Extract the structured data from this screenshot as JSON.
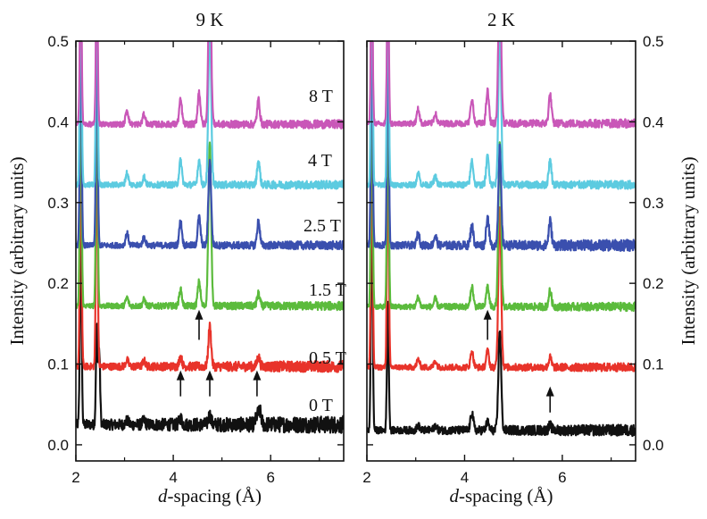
{
  "chart_data": {
    "type": "line",
    "ylabel": "Intensity (arbitrary units)",
    "xlabel_italic": "d",
    "xlabel_rest": "-spacing (Å)",
    "xlim": [
      2,
      7.5
    ],
    "ylim": [
      -0.02,
      0.5
    ],
    "xticks": [
      2,
      4,
      6
    ],
    "yticks": [
      0.0,
      0.1,
      0.2,
      0.3,
      0.4,
      0.5
    ],
    "grid": false,
    "panels": [
      {
        "title": "9 K",
        "y_axis_side": "left",
        "series": [
          {
            "name": "0 T",
            "color": "#111111",
            "baseline": 0.025,
            "peaks": [
              [
                2.1,
                0.24
              ],
              [
                2.43,
                0.12
              ],
              [
                2.48,
                0.09
              ],
              [
                3.05,
                0.005
              ],
              [
                3.4,
                0.005
              ],
              [
                4.15,
                0.008
              ],
              [
                4.75,
                0.012
              ],
              [
                5.72,
                0.01
              ],
              [
                5.78,
                0.015
              ]
            ],
            "noise": 0.006
          },
          {
            "name": "0.5 T",
            "color": "#e8332a",
            "baseline": 0.097,
            "peaks": [
              [
                2.1,
                0.3
              ],
              [
                2.43,
                0.3
              ],
              [
                3.05,
                0.008
              ],
              [
                3.4,
                0.007
              ],
              [
                4.15,
                0.012
              ],
              [
                4.75,
                0.05
              ],
              [
                5.75,
                0.012
              ]
            ],
            "noise": 0.004
          },
          {
            "name": "1.5 T",
            "color": "#5bbb3c",
            "baseline": 0.172,
            "peaks": [
              [
                2.1,
                0.3
              ],
              [
                2.43,
                0.3
              ],
              [
                3.05,
                0.01
              ],
              [
                3.4,
                0.008
              ],
              [
                4.15,
                0.02
              ],
              [
                4.53,
                0.03
              ],
              [
                4.75,
                0.2
              ],
              [
                5.75,
                0.015
              ]
            ],
            "noise": 0.003
          },
          {
            "name": "2.5 T",
            "color": "#3a4fae",
            "baseline": 0.247,
            "peaks": [
              [
                2.1,
                0.3
              ],
              [
                2.43,
                0.3
              ],
              [
                3.05,
                0.015
              ],
              [
                3.4,
                0.01
              ],
              [
                4.15,
                0.03
              ],
              [
                4.53,
                0.035
              ],
              [
                4.75,
                0.105
              ],
              [
                5.75,
                0.03
              ]
            ],
            "noise": 0.003
          },
          {
            "name": "4 T",
            "color": "#5ccbe0",
            "baseline": 0.322,
            "peaks": [
              [
                2.1,
                0.3
              ],
              [
                2.43,
                0.3
              ],
              [
                3.05,
                0.015
              ],
              [
                3.4,
                0.01
              ],
              [
                4.15,
                0.03
              ],
              [
                4.53,
                0.03
              ],
              [
                4.75,
                0.2
              ],
              [
                5.75,
                0.03
              ]
            ],
            "noise": 0.003
          },
          {
            "name": "8 T",
            "color": "#c957b8",
            "baseline": 0.397,
            "peaks": [
              [
                2.1,
                0.2
              ],
              [
                2.43,
                0.2
              ],
              [
                3.05,
                0.018
              ],
              [
                3.4,
                0.012
              ],
              [
                4.15,
                0.03
              ],
              [
                4.53,
                0.04
              ],
              [
                4.75,
                0.2
              ],
              [
                5.75,
                0.03
              ]
            ],
            "noise": 0.003
          }
        ],
        "arrows": [
          [
            4.15,
            0.06,
            0.09
          ],
          [
            4.75,
            0.06,
            0.09
          ],
          [
            5.72,
            0.06,
            0.09
          ],
          [
            4.53,
            0.13,
            0.165
          ]
        ]
      },
      {
        "title": "2 K",
        "y_axis_side": "right",
        "series": [
          {
            "name": "0 T",
            "color": "#111111",
            "baseline": 0.018,
            "peaks": [
              [
                2.1,
                0.3
              ],
              [
                2.43,
                0.16
              ],
              [
                3.05,
                0.006
              ],
              [
                3.4,
                0.006
              ],
              [
                4.15,
                0.022
              ],
              [
                4.47,
                0.01
              ],
              [
                4.72,
                0.125
              ],
              [
                5.75,
                0.006
              ]
            ],
            "noise": 0.004
          },
          {
            "name": "0.5 T",
            "color": "#e8332a",
            "baseline": 0.096,
            "peaks": [
              [
                2.1,
                0.3
              ],
              [
                2.43,
                0.3
              ],
              [
                3.05,
                0.01
              ],
              [
                3.4,
                0.008
              ],
              [
                4.15,
                0.02
              ],
              [
                4.47,
                0.02
              ],
              [
                4.72,
                0.2
              ],
              [
                5.75,
                0.012
              ]
            ],
            "noise": 0.003
          },
          {
            "name": "1.5 T",
            "color": "#5bbb3c",
            "baseline": 0.171,
            "peaks": [
              [
                2.1,
                0.3
              ],
              [
                2.43,
                0.3
              ],
              [
                3.05,
                0.012
              ],
              [
                3.4,
                0.01
              ],
              [
                4.15,
                0.025
              ],
              [
                4.47,
                0.025
              ],
              [
                4.72,
                0.2
              ],
              [
                5.75,
                0.02
              ]
            ],
            "noise": 0.003
          },
          {
            "name": "2.5 T",
            "color": "#3a4fae",
            "baseline": 0.247,
            "peaks": [
              [
                2.1,
                0.3
              ],
              [
                2.43,
                0.3
              ],
              [
                3.05,
                0.015
              ],
              [
                3.4,
                0.012
              ],
              [
                4.15,
                0.025
              ],
              [
                4.47,
                0.035
              ],
              [
                4.72,
                0.12
              ],
              [
                5.75,
                0.03
              ]
            ],
            "noise": 0.004
          },
          {
            "name": "4 T",
            "color": "#5ccbe0",
            "baseline": 0.322,
            "peaks": [
              [
                2.1,
                0.3
              ],
              [
                2.43,
                0.3
              ],
              [
                3.05,
                0.015
              ],
              [
                3.4,
                0.01
              ],
              [
                4.15,
                0.03
              ],
              [
                4.47,
                0.035
              ],
              [
                4.72,
                0.2
              ],
              [
                5.75,
                0.03
              ]
            ],
            "noise": 0.003
          },
          {
            "name": "8 T",
            "color": "#c957b8",
            "baseline": 0.398,
            "peaks": [
              [
                2.1,
                0.2
              ],
              [
                2.43,
                0.2
              ],
              [
                3.05,
                0.018
              ],
              [
                3.4,
                0.012
              ],
              [
                4.15,
                0.03
              ],
              [
                4.47,
                0.04
              ],
              [
                4.72,
                0.2
              ],
              [
                5.75,
                0.035
              ]
            ],
            "noise": 0.003
          }
        ],
        "arrows": [
          [
            4.47,
            0.13,
            0.165
          ],
          [
            5.75,
            0.04,
            0.07
          ]
        ]
      }
    ]
  }
}
